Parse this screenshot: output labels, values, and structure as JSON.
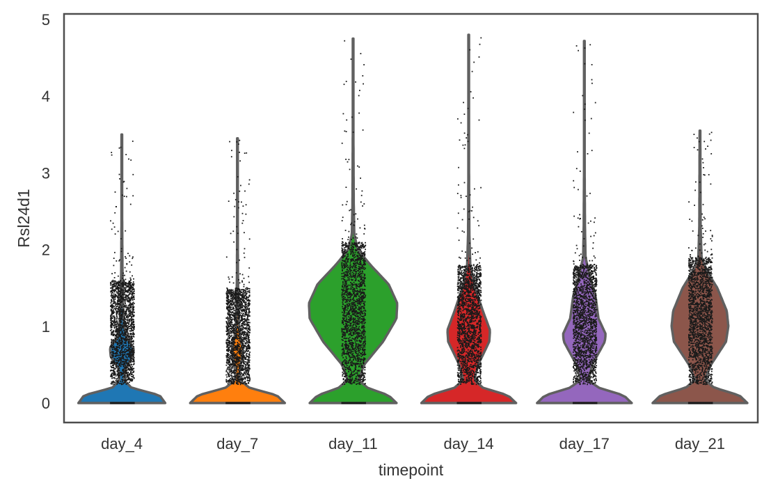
{
  "chart_data": {
    "type": "violin",
    "xlabel": "timepoint",
    "ylabel": "Rsl24d1",
    "ylim": [
      -0.25,
      5.0
    ],
    "yticks": [
      0,
      1,
      2,
      3,
      4,
      5
    ],
    "grid": false,
    "legend": "none",
    "jitter_points": true,
    "categories": [
      "day_4",
      "day_7",
      "day_11",
      "day_14",
      "day_17",
      "day_21"
    ],
    "colors": [
      "#1f77b4",
      "#ff7f0e",
      "#2ca02c",
      "#d62728",
      "#9467bd",
      "#8c564b"
    ],
    "series": [
      {
        "category": "day_4",
        "max": 3.5,
        "upper_dense": 1.6,
        "profile": [
          [
            0,
            0.55
          ],
          [
            0.1,
            0.48
          ],
          [
            0.2,
            0.12
          ],
          [
            0.3,
            0.03
          ],
          [
            0.45,
            0.04
          ],
          [
            0.6,
            0.14
          ],
          [
            0.72,
            0.15
          ],
          [
            0.85,
            0.06
          ],
          [
            1.0,
            0.03
          ],
          [
            1.3,
            0.015
          ],
          [
            1.7,
            0.008
          ],
          [
            2.4,
            0.004
          ],
          [
            3.5,
            0.004
          ]
        ]
      },
      {
        "category": "day_7",
        "max": 3.45,
        "upper_dense": 1.5,
        "profile": [
          [
            0,
            0.6
          ],
          [
            0.1,
            0.5
          ],
          [
            0.2,
            0.15
          ],
          [
            0.3,
            0.03
          ],
          [
            0.45,
            0.03
          ],
          [
            0.6,
            0.06
          ],
          [
            0.7,
            0.07
          ],
          [
            0.85,
            0.04
          ],
          [
            1.0,
            0.02
          ],
          [
            1.3,
            0.012
          ],
          [
            1.7,
            0.006
          ],
          [
            2.4,
            0.004
          ],
          [
            3.45,
            0.004
          ]
        ]
      },
      {
        "category": "day_11",
        "max": 4.75,
        "upper_dense": 2.1,
        "profile": [
          [
            0,
            0.55
          ],
          [
            0.1,
            0.45
          ],
          [
            0.2,
            0.18
          ],
          [
            0.3,
            0.07
          ],
          [
            0.5,
            0.14
          ],
          [
            0.8,
            0.38
          ],
          [
            1.1,
            0.55
          ],
          [
            1.3,
            0.56
          ],
          [
            1.55,
            0.45
          ],
          [
            1.8,
            0.22
          ],
          [
            2.0,
            0.06
          ],
          [
            2.2,
            0.015
          ],
          [
            2.6,
            0.008
          ],
          [
            3.5,
            0.004
          ],
          [
            4.75,
            0.004
          ]
        ]
      },
      {
        "category": "day_14",
        "max": 4.8,
        "upper_dense": 1.8,
        "profile": [
          [
            0,
            0.6
          ],
          [
            0.1,
            0.5
          ],
          [
            0.2,
            0.18
          ],
          [
            0.3,
            0.07
          ],
          [
            0.5,
            0.12
          ],
          [
            0.8,
            0.26
          ],
          [
            0.95,
            0.27
          ],
          [
            1.2,
            0.18
          ],
          [
            1.5,
            0.08
          ],
          [
            1.8,
            0.02
          ],
          [
            2.2,
            0.008
          ],
          [
            3.0,
            0.004
          ],
          [
            4.8,
            0.004
          ]
        ]
      },
      {
        "category": "day_17",
        "max": 4.72,
        "upper_dense": 1.8,
        "profile": [
          [
            0,
            0.6
          ],
          [
            0.1,
            0.5
          ],
          [
            0.2,
            0.18
          ],
          [
            0.3,
            0.05
          ],
          [
            0.5,
            0.1
          ],
          [
            0.8,
            0.26
          ],
          [
            0.9,
            0.27
          ],
          [
            1.1,
            0.18
          ],
          [
            1.4,
            0.14
          ],
          [
            1.6,
            0.08
          ],
          [
            1.9,
            0.015
          ],
          [
            2.3,
            0.008
          ],
          [
            3.0,
            0.004
          ],
          [
            4.72,
            0.004
          ]
        ]
      },
      {
        "category": "day_21",
        "max": 3.55,
        "upper_dense": 1.9,
        "profile": [
          [
            0,
            0.6
          ],
          [
            0.1,
            0.5
          ],
          [
            0.2,
            0.18
          ],
          [
            0.3,
            0.06
          ],
          [
            0.5,
            0.14
          ],
          [
            0.8,
            0.33
          ],
          [
            1.0,
            0.36
          ],
          [
            1.2,
            0.34
          ],
          [
            1.5,
            0.22
          ],
          [
            1.7,
            0.1
          ],
          [
            1.9,
            0.02
          ],
          [
            2.3,
            0.008
          ],
          [
            3.55,
            0.004
          ]
        ]
      }
    ]
  }
}
